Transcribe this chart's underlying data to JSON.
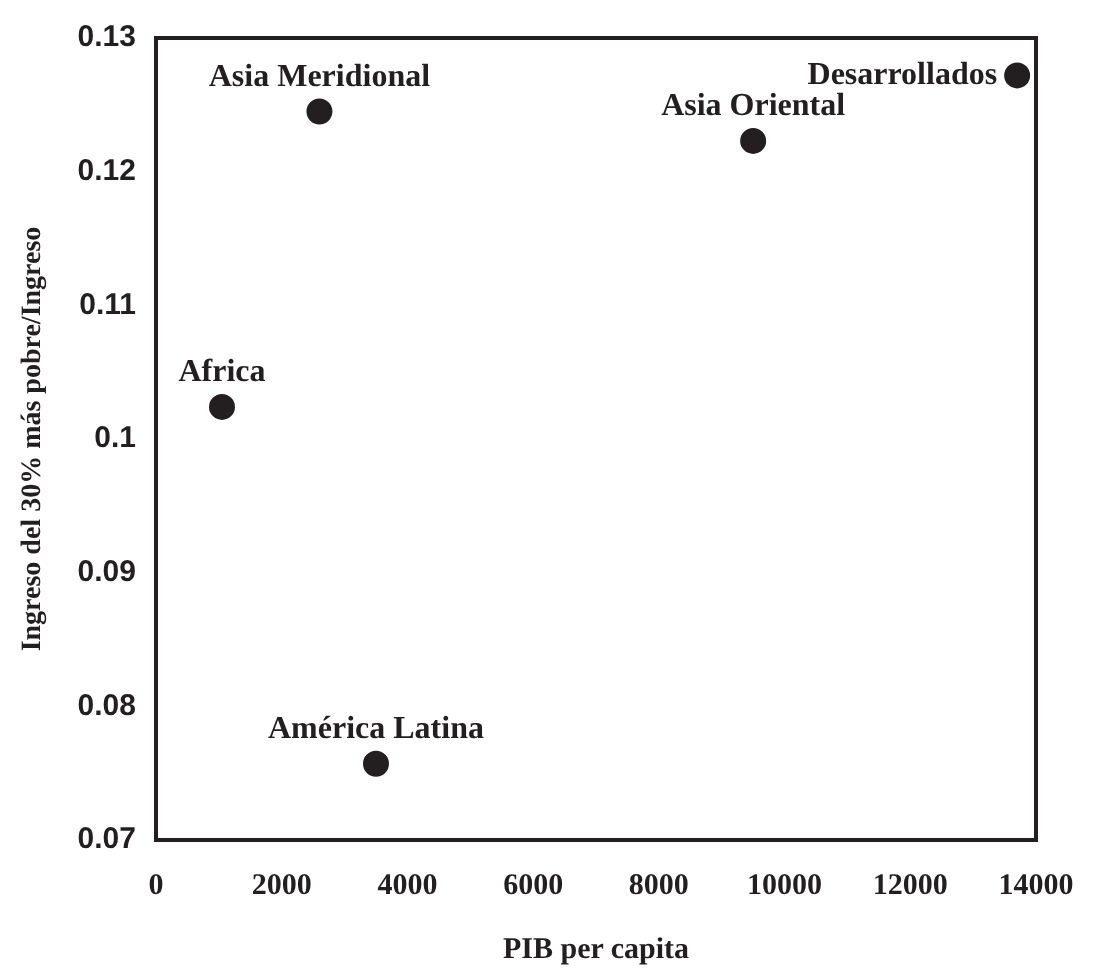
{
  "chart_data": {
    "type": "scatter",
    "xlabel": "PIB per capita",
    "ylabel": "Ingreso del 30% más pobre/Ingreso",
    "x": [
      2600,
      9500,
      13700,
      1050,
      3500
    ],
    "series": [
      {
        "color": "#231f20",
        "values": [
          0.1245,
          0.1223,
          0.1272,
          0.1024,
          0.0757
        ]
      }
    ],
    "xlim": [
      0,
      14000
    ],
    "xticks": [
      0,
      2000,
      4000,
      6000,
      8000,
      10000,
      12000,
      14000
    ],
    "ylim": [
      0.07,
      0.13
    ],
    "yticks": [
      0.07,
      0.08,
      0.09,
      0.1,
      0.11,
      0.12,
      0.13
    ],
    "grid": false,
    "legend": false,
    "marker": "circle",
    "annotations": [
      {
        "text": "Asia Meridional",
        "x": 2600,
        "y": 0.1245
      },
      {
        "text": "Asia Oriental",
        "x": 9500,
        "y": 0.1223
      },
      {
        "text": "Desarrollados",
        "x": 13700,
        "y": 0.1272
      },
      {
        "text": "Africa",
        "x": 1050,
        "y": 0.1024
      },
      {
        "text": "América Latina",
        "x": 3500,
        "y": 0.0757
      }
    ]
  }
}
